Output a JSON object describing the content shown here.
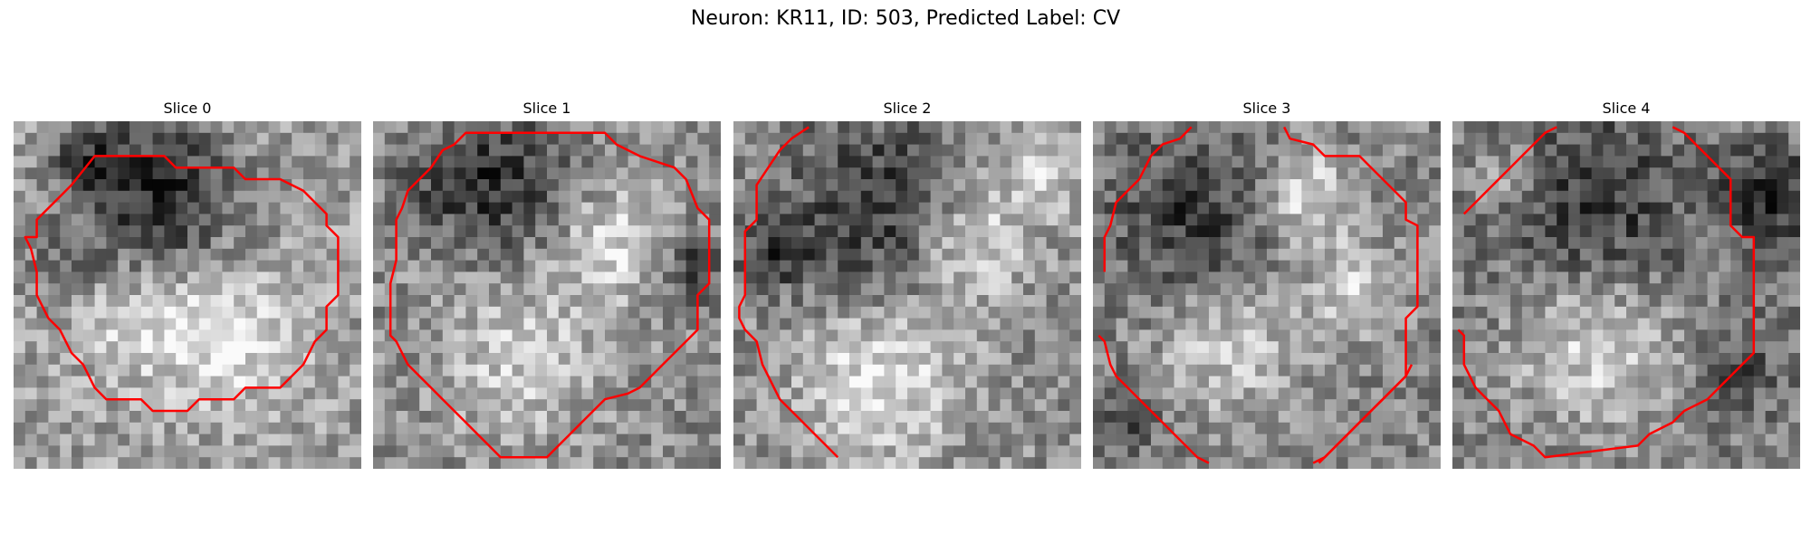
{
  "figure": {
    "title": "Neuron: KR11, ID: 503, Predicted Label: CV",
    "contour_color": "#ff0000"
  },
  "slices": [
    {
      "title": "Slice 0"
    },
    {
      "title": "Slice 1"
    },
    {
      "title": "Slice 2"
    },
    {
      "title": "Slice 3"
    },
    {
      "title": "Slice 4"
    }
  ]
}
